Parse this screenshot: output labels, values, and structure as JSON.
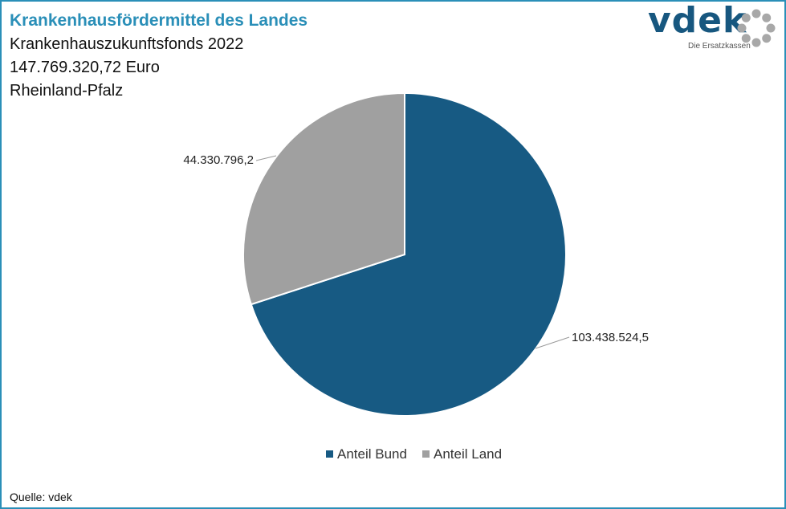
{
  "chart_data": {
    "type": "pie",
    "title": "Krankenhausfördermittel des Landes",
    "subtitle_lines": [
      "Krankenhauszukunftsfonds 2022",
      "147.769.320,72 Euro",
      "Rheinland-Pfalz"
    ],
    "slices": [
      {
        "name": "Anteil Bund",
        "value": 103438524.5,
        "label": "103.438.524,5",
        "color": "#175a83"
      },
      {
        "name": "Anteil Land",
        "value": 44330796.2,
        "label": "44.330.796,2",
        "color": "#a0a0a0"
      }
    ],
    "legend_position": "bottom"
  },
  "logo": {
    "text": "vdek",
    "tagline": "Die Ersatzkassen"
  },
  "source": "Quelle: vdek"
}
